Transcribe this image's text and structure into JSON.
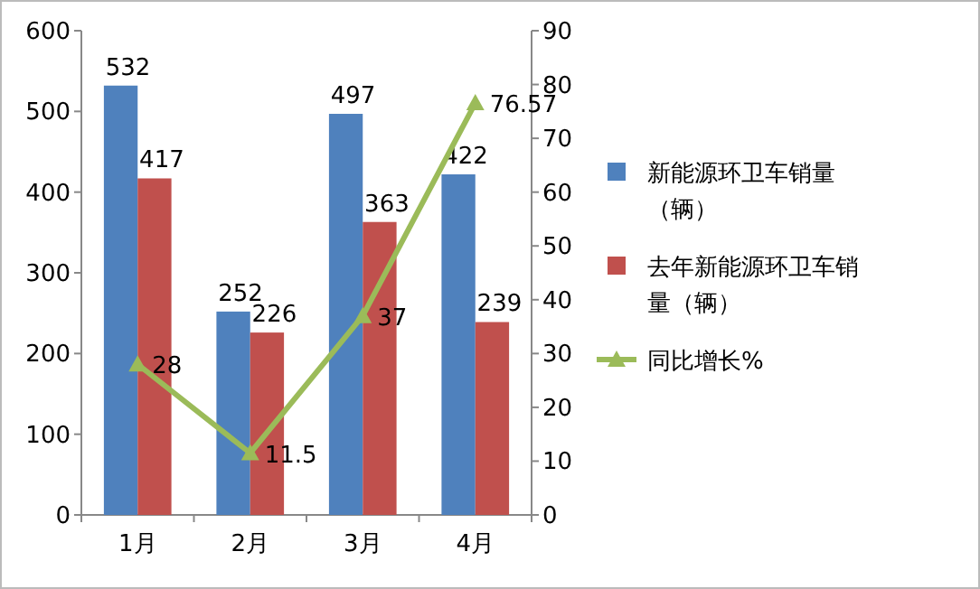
{
  "chart_data": {
    "type": "bar",
    "categories": [
      "1月",
      "2月",
      "3月",
      "4月"
    ],
    "series": [
      {
        "name": "新能源环卫车销量（辆）",
        "color": "#4f81bd",
        "values": [
          532,
          252,
          497,
          422
        ]
      },
      {
        "name": "去年新能源环卫车销量（辆）",
        "color": "#c0504d",
        "values": [
          417,
          226,
          363,
          239
        ]
      },
      {
        "name": "同比增长%",
        "type": "line",
        "axis": "y2",
        "color": "#9bbb59",
        "marker": "triangle",
        "values": [
          28,
          11.5,
          37,
          76.57
        ]
      }
    ],
    "ylim": [
      0,
      600
    ],
    "yticks": [
      0,
      100,
      200,
      300,
      400,
      500,
      600
    ],
    "y2lim": [
      0,
      90
    ],
    "y2ticks": [
      0,
      10,
      20,
      30,
      40,
      50,
      60,
      70,
      80,
      90
    ],
    "data_labels": true,
    "legend": "right"
  }
}
